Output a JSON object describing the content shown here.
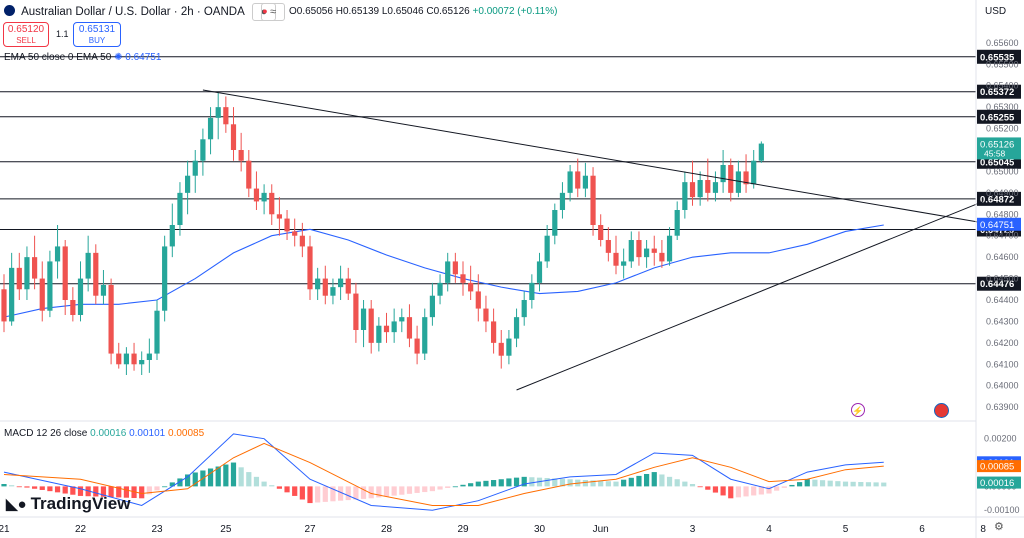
{
  "header": {
    "title": "Australian Dollar / U.S. Dollar · 2h · OANDA",
    "open": "O0.65056",
    "high": "H0.65139",
    "low": "L0.65046",
    "close": "C0.65126",
    "change": "+0.00072 (+0.11%)",
    "sell_price": "0.65120",
    "sell_label": "SELL",
    "buy_price": "0.65131",
    "buy_label": "BUY",
    "spread": "1.1",
    "ema_legend": "EMA 50 close 0 EMA 50",
    "ema_value": "0.64751",
    "macd_legend": "MACD 12 26 close",
    "macd_hist_value": "0.00016",
    "macd_value": "0.00101",
    "macd_signal_value": "0.00085",
    "currency": "USD",
    "logo_text": "TradingView",
    "logo_icon": "tradingview-logo-icon",
    "flag_icon": "au-flag-icon",
    "wave_icon": "wave-icon",
    "lightning_icon": "lightning-icon",
    "us_flag_icon": "us-flag-icon",
    "settings_icon": "gear-icon"
  },
  "chart_data": {
    "type": "candlestick",
    "price_axis": {
      "range": [
        0.6384,
        0.6566
      ],
      "ticks": [
        "0.65600",
        "0.65500",
        "0.65400",
        "0.65300",
        "0.65200",
        "0.65100",
        "0.65000",
        "0.64900",
        "0.64800",
        "0.64700",
        "0.64600",
        "0.64500",
        "0.64400",
        "0.64300",
        "0.64200",
        "0.64100",
        "0.64000",
        "0.63900"
      ],
      "tick_values": [
        0.656,
        0.655,
        0.654,
        0.653,
        0.652,
        0.651,
        0.65,
        0.649,
        0.648,
        0.647,
        0.646,
        0.645,
        0.644,
        0.643,
        0.642,
        0.641,
        0.64,
        0.639
      ]
    },
    "time_axis": {
      "labels": [
        "21",
        "22",
        "23",
        "25",
        "27",
        "28",
        "29",
        "30",
        "Jun",
        "3",
        "4",
        "5",
        "6",
        "8"
      ],
      "positions": [
        0,
        10,
        20,
        29,
        40,
        50,
        60,
        70,
        78,
        90,
        100,
        110,
        120,
        128
      ]
    },
    "horizontal_levels": [
      {
        "price": 0.65535,
        "label": "0.65535"
      },
      {
        "price": 0.65372,
        "label": "0.65372"
      },
      {
        "price": 0.65255,
        "label": "0.65255"
      },
      {
        "price": 0.65045,
        "label": "0.65045"
      },
      {
        "price": 0.64872,
        "label": "0.64872"
      },
      {
        "price": 0.64729,
        "label": "0.64729"
      },
      {
        "price": 0.64476,
        "label": "0.64476"
      }
    ],
    "price_tags": [
      {
        "price": 0.65126,
        "label": "0.65126",
        "sub": "45:58",
        "color": "#26a69a"
      },
      {
        "price": 0.64751,
        "label": "0.64751",
        "color": "#2962ff"
      }
    ],
    "trendlines": [
      {
        "from": [
          26,
          0.6538
        ],
        "to": [
          128,
          0.6476
        ]
      },
      {
        "from": [
          67,
          0.6398
        ],
        "to": [
          128,
          0.6486
        ]
      }
    ],
    "ohlc": [
      [
        0.6445,
        0.6452,
        0.6425,
        0.643
      ],
      [
        0.643,
        0.6462,
        0.6428,
        0.6455
      ],
      [
        0.6455,
        0.6462,
        0.644,
        0.6445
      ],
      [
        0.6445,
        0.6465,
        0.644,
        0.646
      ],
      [
        0.646,
        0.647,
        0.6445,
        0.645
      ],
      [
        0.645,
        0.6458,
        0.643,
        0.6435
      ],
      [
        0.6435,
        0.6463,
        0.6432,
        0.6458
      ],
      [
        0.6458,
        0.6475,
        0.645,
        0.6465
      ],
      [
        0.6465,
        0.6468,
        0.6433,
        0.644
      ],
      [
        0.644,
        0.6446,
        0.643,
        0.6433
      ],
      [
        0.6433,
        0.6458,
        0.643,
        0.645
      ],
      [
        0.645,
        0.647,
        0.6444,
        0.6462
      ],
      [
        0.6462,
        0.6466,
        0.6438,
        0.6442
      ],
      [
        0.6442,
        0.6454,
        0.6438,
        0.6447
      ],
      [
        0.6447,
        0.645,
        0.641,
        0.6415
      ],
      [
        0.6415,
        0.642,
        0.6408,
        0.641
      ],
      [
        0.641,
        0.6418,
        0.6405,
        0.6415
      ],
      [
        0.6415,
        0.642,
        0.6407,
        0.641
      ],
      [
        0.641,
        0.6416,
        0.6405,
        0.6412
      ],
      [
        0.6412,
        0.6422,
        0.6406,
        0.6415
      ],
      [
        0.6415,
        0.644,
        0.6412,
        0.6435
      ],
      [
        0.6435,
        0.647,
        0.643,
        0.6465
      ],
      [
        0.6465,
        0.6485,
        0.646,
        0.6475
      ],
      [
        0.6475,
        0.6495,
        0.647,
        0.649
      ],
      [
        0.649,
        0.6505,
        0.648,
        0.6498
      ],
      [
        0.6498,
        0.651,
        0.649,
        0.6505
      ],
      [
        0.6505,
        0.652,
        0.6498,
        0.6515
      ],
      [
        0.6515,
        0.653,
        0.6508,
        0.6525
      ],
      [
        0.6525,
        0.6537,
        0.6515,
        0.653
      ],
      [
        0.653,
        0.6535,
        0.6518,
        0.6522
      ],
      [
        0.6522,
        0.653,
        0.6505,
        0.651
      ],
      [
        0.651,
        0.6518,
        0.65,
        0.6505
      ],
      [
        0.6505,
        0.651,
        0.6488,
        0.6492
      ],
      [
        0.6492,
        0.65,
        0.6482,
        0.6486
      ],
      [
        0.6486,
        0.6494,
        0.648,
        0.649
      ],
      [
        0.649,
        0.6494,
        0.6475,
        0.648
      ],
      [
        0.648,
        0.6488,
        0.647,
        0.6478
      ],
      [
        0.6478,
        0.6482,
        0.6468,
        0.6472
      ],
      [
        0.6472,
        0.6478,
        0.6465,
        0.647
      ],
      [
        0.647,
        0.6476,
        0.646,
        0.6465
      ],
      [
        0.6465,
        0.647,
        0.644,
        0.6445
      ],
      [
        0.6445,
        0.6455,
        0.644,
        0.645
      ],
      [
        0.645,
        0.6456,
        0.6438,
        0.6442
      ],
      [
        0.6442,
        0.645,
        0.6438,
        0.6446
      ],
      [
        0.6446,
        0.6456,
        0.644,
        0.645
      ],
      [
        0.645,
        0.6455,
        0.644,
        0.6443
      ],
      [
        0.6443,
        0.6448,
        0.642,
        0.6426
      ],
      [
        0.6426,
        0.644,
        0.6418,
        0.6436
      ],
      [
        0.6436,
        0.644,
        0.6415,
        0.642
      ],
      [
        0.642,
        0.6432,
        0.6416,
        0.6428
      ],
      [
        0.6428,
        0.6434,
        0.642,
        0.6425
      ],
      [
        0.6425,
        0.6436,
        0.642,
        0.643
      ],
      [
        0.643,
        0.6436,
        0.6425,
        0.6432
      ],
      [
        0.6432,
        0.6438,
        0.6418,
        0.6422
      ],
      [
        0.6422,
        0.6428,
        0.641,
        0.6415
      ],
      [
        0.6415,
        0.6436,
        0.6412,
        0.6432
      ],
      [
        0.6432,
        0.6448,
        0.6428,
        0.6442
      ],
      [
        0.6442,
        0.6452,
        0.6438,
        0.6448
      ],
      [
        0.6448,
        0.6462,
        0.6444,
        0.6458
      ],
      [
        0.6458,
        0.6462,
        0.6448,
        0.6452
      ],
      [
        0.6452,
        0.6458,
        0.6442,
        0.6448
      ],
      [
        0.6448,
        0.6456,
        0.644,
        0.6444
      ],
      [
        0.6444,
        0.6452,
        0.643,
        0.6436
      ],
      [
        0.6436,
        0.6442,
        0.6425,
        0.643
      ],
      [
        0.643,
        0.6436,
        0.6415,
        0.642
      ],
      [
        0.642,
        0.6426,
        0.6408,
        0.6414
      ],
      [
        0.6414,
        0.6426,
        0.641,
        0.6422
      ],
      [
        0.6422,
        0.6436,
        0.6418,
        0.6432
      ],
      [
        0.6432,
        0.6444,
        0.6428,
        0.644
      ],
      [
        0.644,
        0.6452,
        0.6436,
        0.6448
      ],
      [
        0.6448,
        0.6462,
        0.6444,
        0.6458
      ],
      [
        0.6458,
        0.6475,
        0.6455,
        0.647
      ],
      [
        0.647,
        0.6485,
        0.6466,
        0.6482
      ],
      [
        0.6482,
        0.6495,
        0.6478,
        0.649
      ],
      [
        0.649,
        0.6503,
        0.6486,
        0.65
      ],
      [
        0.65,
        0.6506,
        0.6488,
        0.6492
      ],
      [
        0.6492,
        0.6504,
        0.6488,
        0.6498
      ],
      [
        0.6498,
        0.6502,
        0.647,
        0.6475
      ],
      [
        0.6475,
        0.648,
        0.6465,
        0.6468
      ],
      [
        0.6468,
        0.6474,
        0.6458,
        0.6462
      ],
      [
        0.6462,
        0.647,
        0.6452,
        0.6456
      ],
      [
        0.6456,
        0.6464,
        0.645,
        0.6458
      ],
      [
        0.6458,
        0.6472,
        0.6455,
        0.6468
      ],
      [
        0.6468,
        0.6472,
        0.6456,
        0.646
      ],
      [
        0.646,
        0.6468,
        0.6455,
        0.6464
      ],
      [
        0.6464,
        0.647,
        0.6456,
        0.6462
      ],
      [
        0.6462,
        0.6468,
        0.6455,
        0.6458
      ],
      [
        0.6458,
        0.6474,
        0.6456,
        0.647
      ],
      [
        0.647,
        0.6486,
        0.6468,
        0.6482
      ],
      [
        0.6482,
        0.65,
        0.6478,
        0.6495
      ],
      [
        0.6495,
        0.6505,
        0.6484,
        0.6488
      ],
      [
        0.6488,
        0.65,
        0.6484,
        0.6496
      ],
      [
        0.6496,
        0.6506,
        0.6486,
        0.649
      ],
      [
        0.649,
        0.65,
        0.6486,
        0.6495
      ],
      [
        0.6495,
        0.651,
        0.649,
        0.6503
      ],
      [
        0.6503,
        0.6506,
        0.6486,
        0.649
      ],
      [
        0.649,
        0.6505,
        0.6488,
        0.65
      ],
      [
        0.65,
        0.6508,
        0.649,
        0.6494
      ],
      [
        0.6494,
        0.651,
        0.6492,
        0.6505
      ],
      [
        0.6505,
        0.6514,
        0.6504,
        0.6513
      ]
    ],
    "ema50": [
      [
        0,
        0.6432
      ],
      [
        5,
        0.6436
      ],
      [
        10,
        0.6438
      ],
      [
        15,
        0.6438
      ],
      [
        20,
        0.644
      ],
      [
        25,
        0.645
      ],
      [
        30,
        0.6462
      ],
      [
        35,
        0.647
      ],
      [
        40,
        0.6473
      ],
      [
        45,
        0.6468
      ],
      [
        50,
        0.6461
      ],
      [
        55,
        0.6455
      ],
      [
        60,
        0.645
      ],
      [
        65,
        0.6446
      ],
      [
        70,
        0.6443
      ],
      [
        75,
        0.6444
      ],
      [
        80,
        0.6448
      ],
      [
        85,
        0.6455
      ],
      [
        90,
        0.646
      ],
      [
        95,
        0.6462
      ],
      [
        100,
        0.6462
      ],
      [
        105,
        0.6466
      ],
      [
        110,
        0.6472
      ],
      [
        115,
        0.6475
      ]
    ],
    "macd": {
      "range": [
        -0.0012,
        0.0027
      ],
      "ticks": [
        "0.00200",
        "0.00100",
        "0.00000",
        "-0.00100"
      ],
      "tick_values": [
        0.002,
        0.001,
        0,
        -0.001
      ],
      "macd_line": [
        [
          0,
          0.0006
        ],
        [
          10,
          -0.0001
        ],
        [
          18,
          -0.0008
        ],
        [
          24,
          0.0004
        ],
        [
          30,
          0.0022
        ],
        [
          34,
          0.002
        ],
        [
          40,
          0.0003
        ],
        [
          48,
          -0.0008
        ],
        [
          56,
          -0.001
        ],
        [
          62,
          -0.0006
        ],
        [
          68,
          0.0001
        ],
        [
          74,
          0.0004
        ],
        [
          80,
          0.0005
        ],
        [
          85,
          0.0014
        ],
        [
          90,
          0.0013
        ],
        [
          95,
          0.0003
        ],
        [
          100,
          -0.0001
        ],
        [
          105,
          0.0006
        ],
        [
          110,
          0.0009
        ],
        [
          115,
          0.00101
        ]
      ],
      "signal_line": [
        [
          0,
          0.0005
        ],
        [
          10,
          0.0003
        ],
        [
          18,
          -0.0003
        ],
        [
          24,
          -0.0001
        ],
        [
          30,
          0.0012
        ],
        [
          34,
          0.0018
        ],
        [
          40,
          0.001
        ],
        [
          48,
          -0.0003
        ],
        [
          56,
          -0.0008
        ],
        [
          62,
          -0.0008
        ],
        [
          68,
          -0.0003
        ],
        [
          74,
          0.0001
        ],
        [
          80,
          0.0003
        ],
        [
          85,
          0.0008
        ],
        [
          90,
          0.0012
        ],
        [
          95,
          0.0008
        ],
        [
          100,
          0.0002
        ],
        [
          105,
          0.0003
        ],
        [
          110,
          0.0007
        ],
        [
          115,
          0.00085
        ]
      ],
      "levels": [
        {
          "value": 0.00101,
          "label": "0.00101",
          "color": "#2962ff"
        },
        {
          "value": 0.00085,
          "label": "0.00085",
          "color": "#ff6d00"
        },
        {
          "value": 0.00016,
          "label": "0.00016",
          "color": "#26a69a"
        }
      ]
    }
  }
}
